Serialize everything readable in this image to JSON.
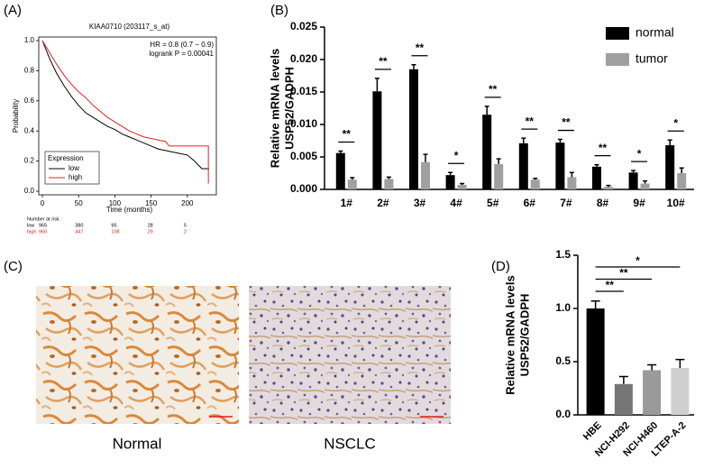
{
  "figure": {
    "panel_labels": [
      "(A)",
      "(B)",
      "(C)",
      "(D)"
    ],
    "captions": [
      "Normal",
      "NSCLC"
    ]
  },
  "chart_data": [
    {
      "type": "line",
      "title": "KIAA0710 (203117_s_at)",
      "xlabel": "Time (months)",
      "ylabel": "Probability",
      "xlim": [
        0,
        240
      ],
      "xticks": [
        0,
        50,
        100,
        150,
        200
      ],
      "ylim": [
        0,
        1
      ],
      "yticks": [
        {
          "value": 0,
          "label": "0.0"
        },
        0.2,
        0.4,
        0.6,
        0.8,
        {
          "value": 1,
          "label": "1.0"
        }
      ],
      "annotations": [
        "HR = 0.8 (0.7 − 0.9)",
        "logrank P = 0.00041"
      ],
      "legend_title": "Expression",
      "series": [
        {
          "name": "low",
          "color": "#000000",
          "x": [
            0,
            10,
            20,
            30,
            40,
            50,
            60,
            70,
            80,
            90,
            100,
            110,
            120,
            130,
            140,
            150,
            160,
            170,
            180,
            190,
            200,
            210,
            220,
            230
          ],
          "values": [
            1,
            0.88,
            0.78,
            0.7,
            0.63,
            0.57,
            0.52,
            0.49,
            0.46,
            0.43,
            0.41,
            0.38,
            0.36,
            0.34,
            0.32,
            0.3,
            0.28,
            0.27,
            0.26,
            0.25,
            0.24,
            0.2,
            0.15,
            0.15
          ]
        },
        {
          "name": "high",
          "color": "#e8201a",
          "x": [
            0,
            10,
            20,
            30,
            40,
            50,
            60,
            70,
            80,
            90,
            100,
            110,
            120,
            130,
            140,
            150,
            160,
            170,
            175,
            200,
            229,
            229
          ],
          "values": [
            1,
            0.92,
            0.84,
            0.77,
            0.71,
            0.66,
            0.62,
            0.57,
            0.53,
            0.49,
            0.46,
            0.43,
            0.4,
            0.38,
            0.36,
            0.35,
            0.34,
            0.33,
            0.3,
            0.3,
            0.3,
            0.05
          ]
        }
      ],
      "risk_table": {
        "title": "Number at risk",
        "rows": [
          {
            "name": "low",
            "color": "#000000",
            "counts": [
              965,
              380,
              95,
              28,
              5
            ]
          },
          {
            "name": "high",
            "color": "#e8201a",
            "counts": [
              960,
              447,
              108,
              29,
              2
            ]
          }
        ]
      }
    },
    {
      "type": "bar",
      "ylabel": [
        "Relative mRNA levels",
        "USP52/GADPH"
      ],
      "categories": [
        "1#",
        "2#",
        "3#",
        "4#",
        "5#",
        "6#",
        "7#",
        "8#",
        "9#",
        "10#"
      ],
      "ylim": [
        0,
        0.025
      ],
      "yticks": [
        {
          "value": 0,
          "label": "0.000"
        },
        0.005,
        {
          "value": 0.01,
          "label": "0.010"
        },
        0.015,
        {
          "value": 0.02,
          "label": "0.020"
        },
        0.025
      ],
      "series": [
        {
          "name": "normal",
          "color": "#000000",
          "values": [
            0.0056,
            0.0151,
            0.0185,
            0.0022,
            0.0115,
            0.0071,
            0.0072,
            0.0035,
            0.0026,
            0.0068
          ],
          "errors": [
            0.0003,
            0.002,
            0.0007,
            0.0004,
            0.0013,
            0.0008,
            0.0005,
            0.0003,
            0.0003,
            0.0008
          ]
        },
        {
          "name": "tumor",
          "color": "#a0a0a0",
          "values": [
            0.0015,
            0.0016,
            0.0042,
            0.0007,
            0.0039,
            0.0015,
            0.0019,
            0.0004,
            0.0009,
            0.0025
          ],
          "errors": [
            0.0003,
            0.0003,
            0.0012,
            0.0002,
            0.0008,
            0.0002,
            0.0007,
            0.0002,
            0.0004,
            0.0008
          ]
        }
      ],
      "significance": [
        "**",
        "**",
        "**",
        "*",
        "**",
        "**",
        "**",
        "**",
        "*",
        "*"
      ]
    },
    {
      "type": "bar",
      "ylabel": [
        "Relative mRNA levels",
        "USP52/GADPH"
      ],
      "categories": [
        "HBE",
        "NCI-H292",
        "NCI-H460",
        "LTEP-A-2"
      ],
      "ylim": [
        0,
        1.5
      ],
      "yticks": [
        {
          "value": 0,
          "label": "0.0"
        },
        0.5,
        {
          "value": 1,
          "label": "1.0"
        },
        1.5
      ],
      "values": [
        1.0,
        0.29,
        0.42,
        0.44
      ],
      "errors": [
        0.07,
        0.07,
        0.05,
        0.08
      ],
      "colors": [
        "#000000",
        "#757575",
        "#9a9a9a",
        "#cfcfcf"
      ],
      "significance": [
        null,
        "**",
        "**",
        "*"
      ]
    }
  ]
}
